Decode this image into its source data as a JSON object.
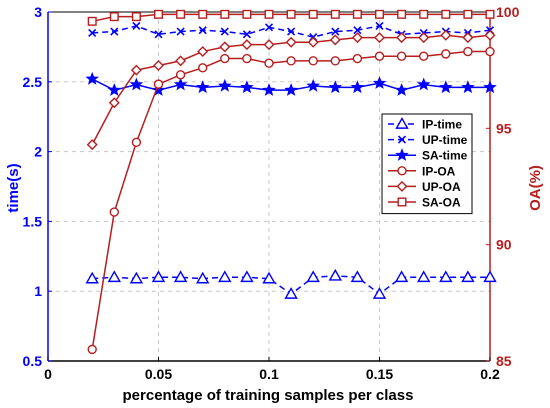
{
  "chart_data": {
    "type": "line",
    "xlabel": "percentage of training samples per class",
    "ylabel_left": "time(s)",
    "ylabel_right": "OA(%)",
    "xlim": [
      0,
      0.2
    ],
    "ylim_left": [
      0.5,
      3
    ],
    "ylim_right": [
      85,
      100
    ],
    "xticks": [
      "0",
      "0.05",
      "0.1",
      "0.15",
      "0.2"
    ],
    "xtick_values": [
      0,
      0.05,
      0.1,
      0.15,
      0.2
    ],
    "yticks_left": [
      "0.5",
      "1",
      "1.5",
      "2",
      "2.5",
      "3"
    ],
    "ytick_values_left": [
      0.5,
      1,
      1.5,
      2,
      2.5,
      3
    ],
    "yticks_right": [
      "85",
      "90",
      "95",
      "100"
    ],
    "ytick_values_right": [
      85,
      90,
      95,
      100
    ],
    "grid": "dashed",
    "legend_position": "right",
    "x": [
      0.02,
      0.03,
      0.04,
      0.05,
      0.06,
      0.07,
      0.08,
      0.09,
      0.1,
      0.11,
      0.12,
      0.13,
      0.14,
      0.15,
      0.16,
      0.17,
      0.18,
      0.19,
      0.2
    ],
    "series": [
      {
        "name": "IP-time",
        "axis": "left",
        "color": "#0000ff",
        "dash": "6,4",
        "marker": "triangle",
        "values": [
          1.09,
          1.1,
          1.09,
          1.1,
          1.1,
          1.09,
          1.1,
          1.1,
          1.09,
          0.98,
          1.1,
          1.11,
          1.1,
          0.98,
          1.1,
          1.1,
          1.1,
          1.1,
          1.1
        ]
      },
      {
        "name": "UP-time",
        "axis": "left",
        "color": "#0000ff",
        "dash": "6,4",
        "marker": "x",
        "values": [
          2.85,
          2.86,
          2.9,
          2.84,
          2.86,
          2.87,
          2.86,
          2.84,
          2.89,
          2.86,
          2.82,
          2.86,
          2.87,
          2.9,
          2.84,
          2.85,
          2.86,
          2.85,
          2.87
        ]
      },
      {
        "name": "SA-time",
        "axis": "left",
        "color": "#0000ff",
        "dash": "",
        "marker": "star",
        "values": [
          2.52,
          2.44,
          2.48,
          2.44,
          2.48,
          2.46,
          2.47,
          2.46,
          2.44,
          2.44,
          2.47,
          2.46,
          2.46,
          2.49,
          2.44,
          2.48,
          2.46,
          2.46,
          2.46
        ]
      },
      {
        "name": "IP-OA",
        "axis": "right",
        "color": "#b81e1e",
        "dash": "",
        "marker": "circle",
        "values": [
          85.5,
          91.4,
          94.4,
          96.9,
          97.3,
          97.6,
          98.0,
          98.0,
          97.8,
          97.9,
          97.9,
          97.9,
          98.0,
          98.1,
          98.1,
          98.1,
          98.2,
          98.3,
          98.3
        ]
      },
      {
        "name": "UP-OA",
        "axis": "right",
        "color": "#b81e1e",
        "dash": "",
        "marker": "diamond",
        "values": [
          94.3,
          96.1,
          97.5,
          97.7,
          97.9,
          98.3,
          98.5,
          98.6,
          98.6,
          98.7,
          98.7,
          98.8,
          98.9,
          98.9,
          98.9,
          98.9,
          99.0,
          98.9,
          99.0
        ]
      },
      {
        "name": "SA-OA",
        "axis": "right",
        "color": "#b81e1e",
        "dash": "",
        "marker": "square",
        "values": [
          99.6,
          99.8,
          99.8,
          99.9,
          99.9,
          99.9,
          99.9,
          99.9,
          99.9,
          99.9,
          99.9,
          99.9,
          99.9,
          99.9,
          99.9,
          99.9,
          99.9,
          99.9,
          99.9
        ]
      }
    ]
  }
}
